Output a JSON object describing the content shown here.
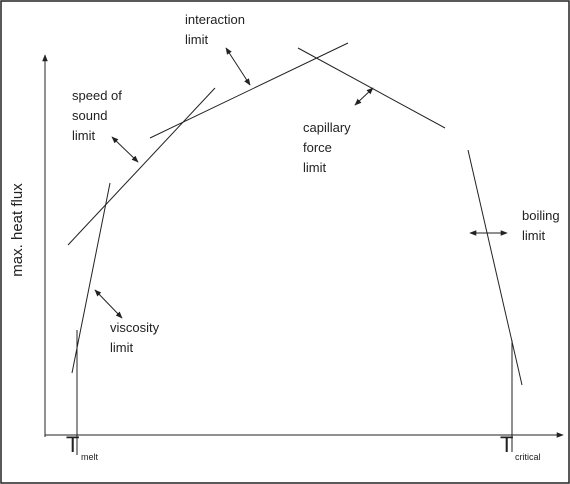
{
  "axes": {
    "y_label": "max. heat flux"
  },
  "labels": {
    "interaction": [
      "interaction",
      "limit"
    ],
    "speed_of_sound": [
      "speed of",
      "sound",
      "limit"
    ],
    "capillary": [
      "capillary",
      "force",
      "limit"
    ],
    "boiling": [
      "boiling",
      "limit"
    ],
    "viscosity": [
      "viscosity",
      "limit"
    ]
  },
  "temperatures": {
    "melt": {
      "main": "T",
      "sub": "melt"
    },
    "critical": {
      "main": "T",
      "sub": "critical"
    }
  }
}
